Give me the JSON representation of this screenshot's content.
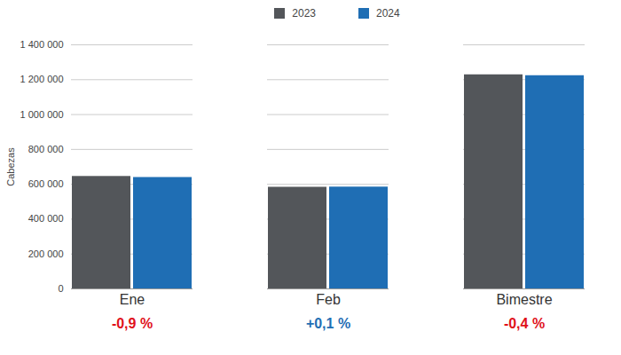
{
  "chart_data": {
    "type": "bar",
    "y_label": "Cabezas",
    "categories": [
      "Ene",
      "Feb",
      "Bimestre"
    ],
    "series": [
      {
        "name": "2023",
        "color": "#53565a",
        "values": [
          645000,
          583000,
          1228000
        ]
      },
      {
        "name": "2024",
        "color": "#1f6eb4",
        "values": [
          639000,
          584000,
          1223000
        ]
      }
    ],
    "ylim": [
      0,
      1400000
    ],
    "yticks": [
      0,
      {
        "value": 200000,
        "label": "200 000"
      },
      {
        "value": 400000,
        "label": "400 000"
      },
      {
        "value": 600000,
        "label": "600 000"
      },
      {
        "value": 800000,
        "label": "800 000"
      },
      {
        "value": 1000000,
        "label": "1 000 000"
      },
      {
        "value": 1200000,
        "label": "1 200 000"
      },
      {
        "value": 1400000,
        "label": "1 400 000"
      }
    ],
    "grid": true,
    "legend": "top",
    "annotations": [
      {
        "category": "Ene",
        "text": "-0,9 %",
        "color": "#e0111a"
      },
      {
        "category": "Feb",
        "text": "+0,1 %",
        "color": "#1f6eb4"
      },
      {
        "category": "Bimestre",
        "text": "-0,4 %",
        "color": "#e0111a"
      }
    ]
  }
}
